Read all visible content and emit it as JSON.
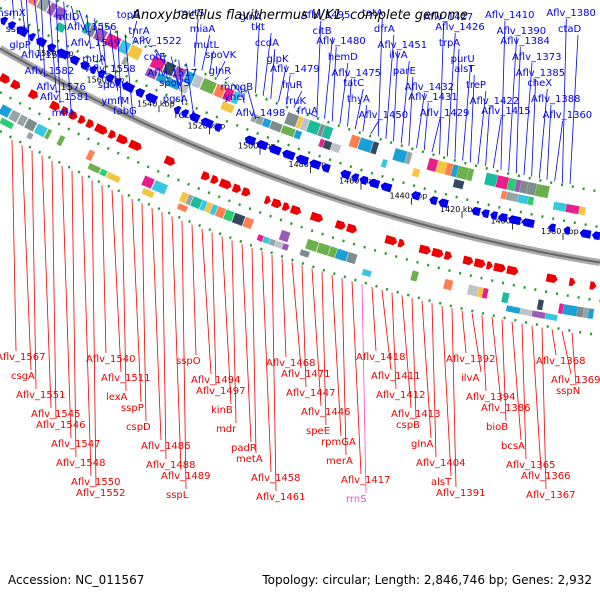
{
  "title": "Anoxybacillus flavithermus WK1, complete genome",
  "footer": {
    "accession": "Accession: NC_011567",
    "summary": "Topology: circular; Length: 2,846,746 bp; Genes: 2,932"
  },
  "colors": {
    "forward": "#0000ee",
    "reverse": "#ee0000",
    "rrna": "#ff44cc",
    "backbone": "#888888",
    "tick_dots": "#229922"
  },
  "scale_ticks": [
    "1580 kbp",
    "1560 kbp",
    "1540 kbp",
    "1520 kbp",
    "1500 kbp",
    "1480 kbp",
    "1460 kbp",
    "1440 kbp",
    "1420 kbp",
    "1400 kbp",
    "1380 kbp"
  ],
  "forward_labels": [
    "msmX",
    "sspH",
    "glpP",
    "Aflv_1583",
    "Aflv_1582",
    "Aflv_1576",
    "Aflv_1581",
    "mtlA",
    "mtlD",
    "Aflv_1556",
    "Aflv_1549",
    "mtlA",
    "Aflv_1558",
    "spoIIU",
    "ymfM",
    "fabG",
    "topB",
    "tnrA",
    "Aflv_1522",
    "cotE",
    "Aflv_1517",
    "spoVS",
    "pgsA",
    "recA",
    "mutS",
    "miaA",
    "mutL",
    "spoVK",
    "glnR",
    "mmgB",
    "yneI",
    "Aflv_1498",
    "glnA",
    "tkt",
    "ccdA",
    "glpK",
    "Aflv_1479",
    "fruR",
    "fruK",
    "fruA",
    "Aflv_1495",
    "citB",
    "Aflv_1480",
    "hemD",
    "Aflv_1475",
    "tatC",
    "thyA",
    "Aflv_1450",
    "tatA",
    "dfrA",
    "Aflv_1451",
    "ilvA",
    "parE",
    "Aflv_1432",
    "Aflv_1431",
    "Aflv_1429",
    "Aflv_1427",
    "Aflv_1426",
    "trpA",
    "purU",
    "alsT",
    "treP",
    "Aflv_1422",
    "Aflv_1415",
    "Aflv_1410",
    "Aflv_1390",
    "Aflv_1384",
    "Aflv_1373",
    "Aflv_1385",
    "cheX",
    "Aflv_1388",
    "Aflv_1360",
    "Aflv_1380",
    "ctaD"
  ],
  "reverse_labels": [
    "Aflv_1567",
    "csgA",
    "Aflv_1551",
    "Aflv_1545",
    "Aflv_1546",
    "Aflv_1547",
    "Aflv_1548",
    "Aflv_1550",
    "Aflv_1552",
    "Aflv_1540",
    "Aflv_1511",
    "lexA",
    "sspP",
    "cspD",
    "Aflv_1486",
    "Aflv_1488",
    "Aflv_1489",
    "sspL",
    "sspO",
    "Aflv_1494",
    "Aflv_1497",
    "kinB",
    "mdr",
    "padR",
    "metA",
    "Aflv_1458",
    "Aflv_1461",
    "Aflv_1468",
    "Aflv_1471",
    "Aflv_1447",
    "Aflv_1446",
    "speE",
    "rpmGA",
    "merA",
    "Aflv_1417",
    "rrnS",
    "Aflv_1418",
    "Aflv_1411",
    "Aflv_1412",
    "Aflv_1413",
    "cspB",
    "glnA",
    "Aflv_1404",
    "alsT",
    "Aflv_1391",
    "Aflv_1392",
    "ilvA",
    "Aflv_1394",
    "Aflv_1386",
    "bioB",
    "bcsA",
    "Aflv_1365",
    "Aflv_1366",
    "Aflv_1367",
    "Aflv_1368",
    "Aflv_1369",
    "sspN"
  ]
}
